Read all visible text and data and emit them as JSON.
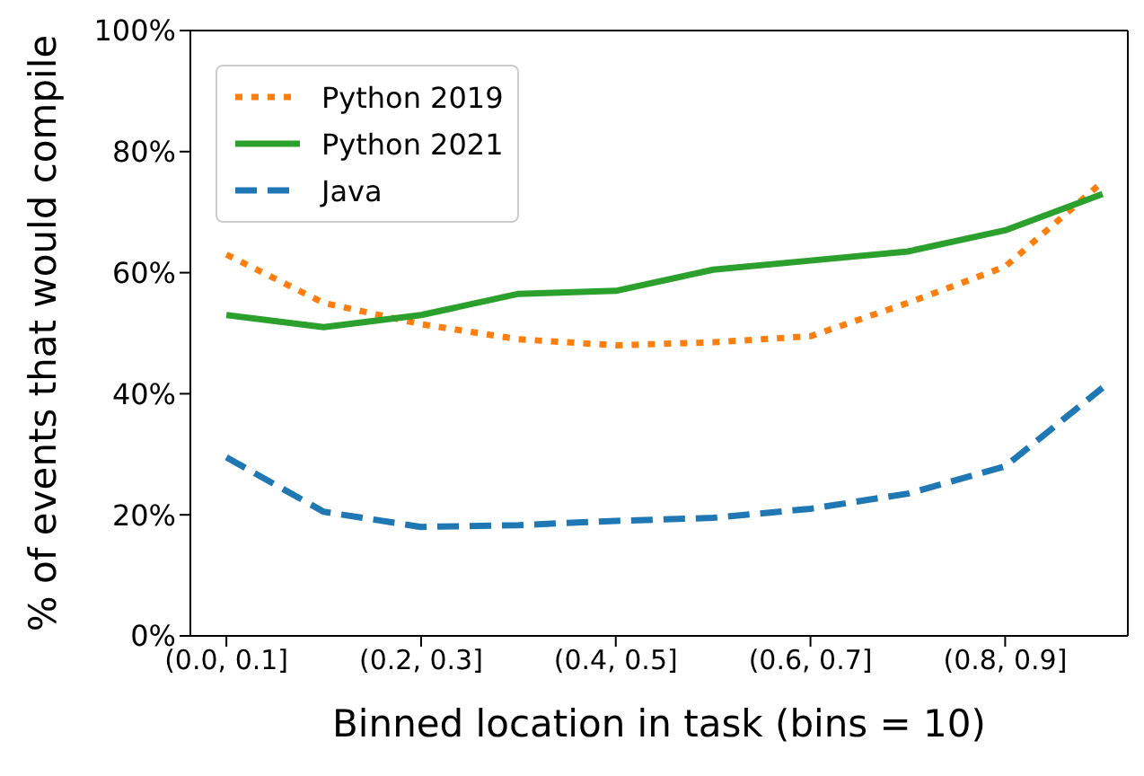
{
  "chart_data": {
    "type": "line",
    "xlabel": "Binned location in task (bins = 10)",
    "ylabel": "% of events that would compile",
    "categories": [
      "(0.0, 0.1]",
      null,
      "(0.2, 0.3]",
      null,
      "(0.4, 0.5]",
      null,
      "(0.6, 0.7]",
      null,
      "(0.8, 0.9]",
      null
    ],
    "series": [
      {
        "name": "Python 2019",
        "color": "#ff7f0e",
        "line_style": "dotted",
        "values": [
          63,
          55,
          51.5,
          49,
          48,
          48.5,
          49.5,
          55,
          61,
          75
        ]
      },
      {
        "name": "Python 2021",
        "color": "#2ca02c",
        "line_style": "solid",
        "values": [
          53,
          51,
          53,
          56.5,
          57,
          60.5,
          62,
          63.5,
          67,
          73
        ]
      },
      {
        "name": "Java",
        "color": "#1f77b4",
        "line_style": "dashed",
        "values": [
          29.5,
          20.5,
          18,
          18.3,
          19,
          19.5,
          21,
          23.5,
          28,
          41
        ]
      }
    ],
    "ylim": [
      0,
      100
    ],
    "yticks": [
      {
        "value": 0,
        "label": "0%"
      },
      {
        "value": 20,
        "label": "20%"
      },
      {
        "value": 40,
        "label": "40%"
      },
      {
        "value": 60,
        "label": "60%"
      },
      {
        "value": 80,
        "label": "80%"
      },
      {
        "value": 100,
        "label": "100%"
      }
    ],
    "grid": false,
    "legend": "top left",
    "marker": "none"
  }
}
